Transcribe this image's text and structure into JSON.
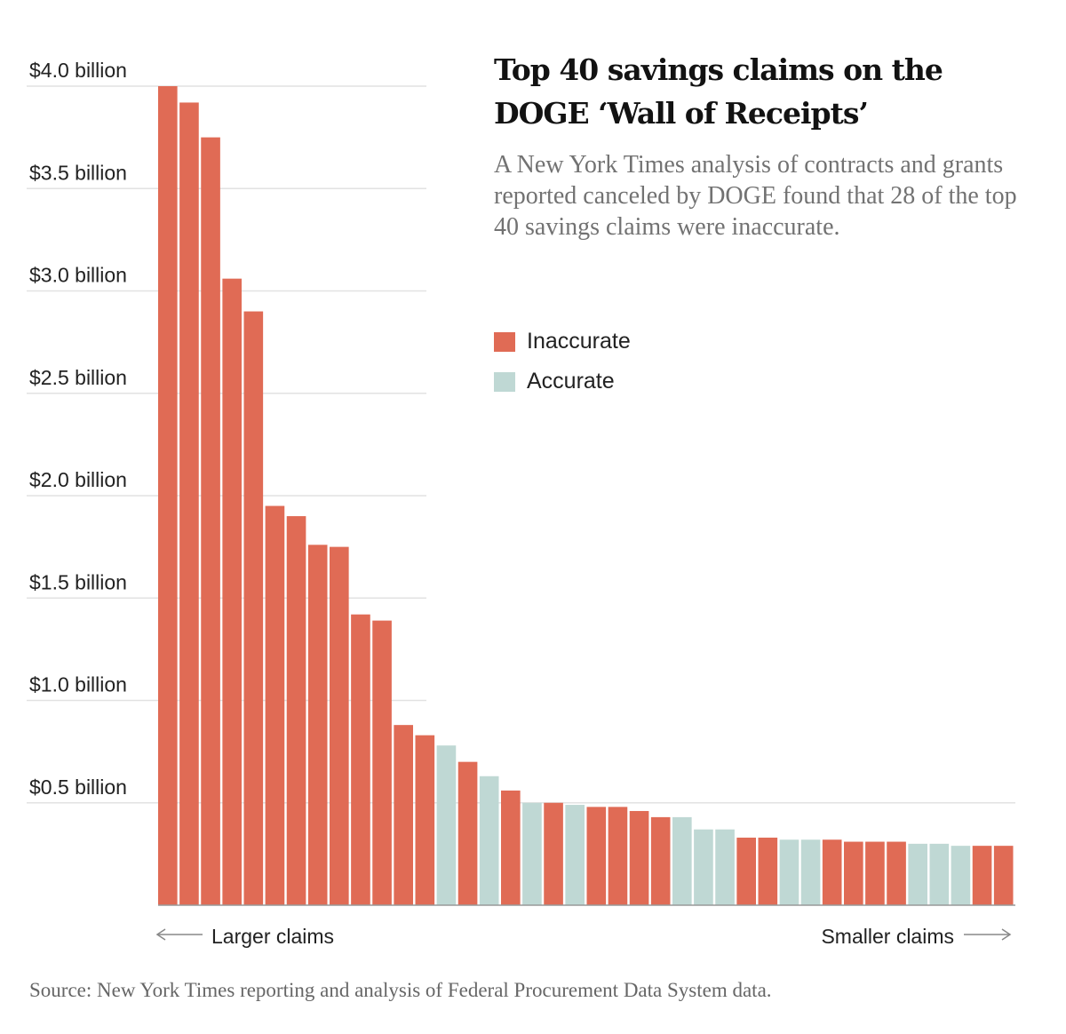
{
  "chart_data": {
    "type": "bar",
    "title": "Top 40 savings claims on the DOGE ‘Wall of Receipts’",
    "subtitle": "A New York Times analysis of contracts and grants reported canceled by DOGE found that 28 of the top 40 savings claims were inaccurate.",
    "xlabel": "",
    "ylabel": "",
    "ylim": [
      0,
      4.0
    ],
    "yticks": [
      {
        "value": 4.0,
        "label": "$4.0 billion"
      },
      {
        "value": 3.5,
        "label": "$3.5 billion"
      },
      {
        "value": 3.0,
        "label": "$3.0 billion"
      },
      {
        "value": 2.5,
        "label": "$2.5 billion"
      },
      {
        "value": 2.0,
        "label": "$2.0 billion"
      },
      {
        "value": 1.5,
        "label": "$1.5 billion"
      },
      {
        "value": 1.0,
        "label": "$1.0 billion"
      },
      {
        "value": 0.5,
        "label": "$0.5 billion"
      }
    ],
    "grid": true,
    "legend_position": "top-right",
    "legend": [
      {
        "key": "inaccurate",
        "label": "Inaccurate",
        "color": "#e06b55"
      },
      {
        "key": "accurate",
        "label": "Accurate",
        "color": "#bfd8d4"
      }
    ],
    "x_direction_labels": {
      "left": "Larger claims",
      "right": "Smaller claims"
    },
    "values": [
      4.0,
      3.92,
      3.75,
      3.06,
      2.9,
      1.95,
      1.9,
      1.76,
      1.75,
      1.42,
      1.39,
      0.88,
      0.83,
      0.78,
      0.7,
      0.63,
      0.56,
      0.5,
      0.5,
      0.49,
      0.48,
      0.48,
      0.46,
      0.43,
      0.43,
      0.37,
      0.37,
      0.33,
      0.33,
      0.32,
      0.32,
      0.32,
      0.31,
      0.31,
      0.31,
      0.3,
      0.3,
      0.29,
      0.29,
      0.29
    ],
    "status": [
      "inaccurate",
      "inaccurate",
      "inaccurate",
      "inaccurate",
      "inaccurate",
      "inaccurate",
      "inaccurate",
      "inaccurate",
      "inaccurate",
      "inaccurate",
      "inaccurate",
      "inaccurate",
      "inaccurate",
      "accurate",
      "inaccurate",
      "accurate",
      "inaccurate",
      "accurate",
      "inaccurate",
      "accurate",
      "inaccurate",
      "inaccurate",
      "inaccurate",
      "inaccurate",
      "accurate",
      "accurate",
      "accurate",
      "inaccurate",
      "inaccurate",
      "accurate",
      "accurate",
      "inaccurate",
      "inaccurate",
      "inaccurate",
      "inaccurate",
      "accurate",
      "accurate",
      "accurate",
      "inaccurate",
      "inaccurate"
    ],
    "source": "Source: New York Times reporting and analysis of Federal Procurement Data System data."
  }
}
